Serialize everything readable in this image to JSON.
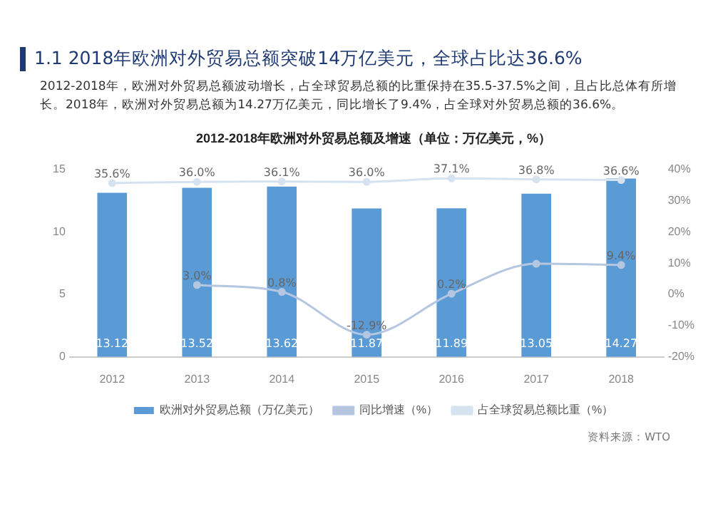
{
  "chart_data": {
    "type": "bar",
    "title": "1.1 2018年欧洲对外贸易总额突破14万亿美元，全球占比达36.6%",
    "subtitle": "2012-2018年，欧洲对外贸易总额波动增长，占全球贸易总额的比重保持在35.5-37.5%之间，且占比总体有所增长。2018年，欧洲对外贸易总额为14.27万亿美元，同比增长了9.4%，占全球对外贸易总额的36.6%。",
    "annotations": [
      "2012-2018年欧洲对外贸易总额及增速（单位：万亿美元，%）",
      "资料来源：WTO"
    ],
    "categories": [
      "2012",
      "2013",
      "2014",
      "2015",
      "2016",
      "2017",
      "2018"
    ],
    "series": [
      {
        "name": "欧洲对外贸易总额（万亿美元）",
        "color": "#5b9bd5",
        "values": [
          13.12,
          13.52,
          13.62,
          11.87,
          11.89,
          13.05,
          14.27
        ]
      },
      {
        "name": "同比增速（%）",
        "type": "line",
        "axis": "y2",
        "color": "#b4c6e0",
        "marker": "circle",
        "values": [
          null,
          3.0,
          0.8,
          -12.9,
          0.2,
          9.8,
          9.4
        ],
        "value_labels": [
          null,
          "3.0%",
          "0.8%",
          "-12.9%",
          "0.2%",
          null,
          "9.4%"
        ]
      },
      {
        "name": "占全球贸易总额比重（%）",
        "type": "line",
        "axis": "y2",
        "color": "#d6e2f0",
        "marker": "circle",
        "values": [
          35.6,
          36.0,
          36.1,
          36.0,
          37.1,
          36.8,
          36.6
        ],
        "value_labels": [
          "35.6%",
          "36.0%",
          "36.1%",
          "36.0%",
          "37.1%",
          "36.8%",
          "36.6%"
        ]
      }
    ],
    "data_labels": true,
    "ylim": [
      0,
      15
    ],
    "yticks": [
      0,
      5,
      10,
      15
    ],
    "y2lim": [
      -20,
      40
    ],
    "y2ticks": [
      {
        "value": -20,
        "label": "-20%"
      },
      {
        "value": -10,
        "label": "-10%"
      },
      {
        "value": 0,
        "label": "0%"
      },
      {
        "value": 10,
        "label": "10%"
      },
      {
        "value": 20,
        "label": "20%"
      },
      {
        "value": 30,
        "label": "30%"
      },
      {
        "value": 40,
        "label": "40%"
      }
    ],
    "grid": false,
    "legend": "bottom"
  }
}
